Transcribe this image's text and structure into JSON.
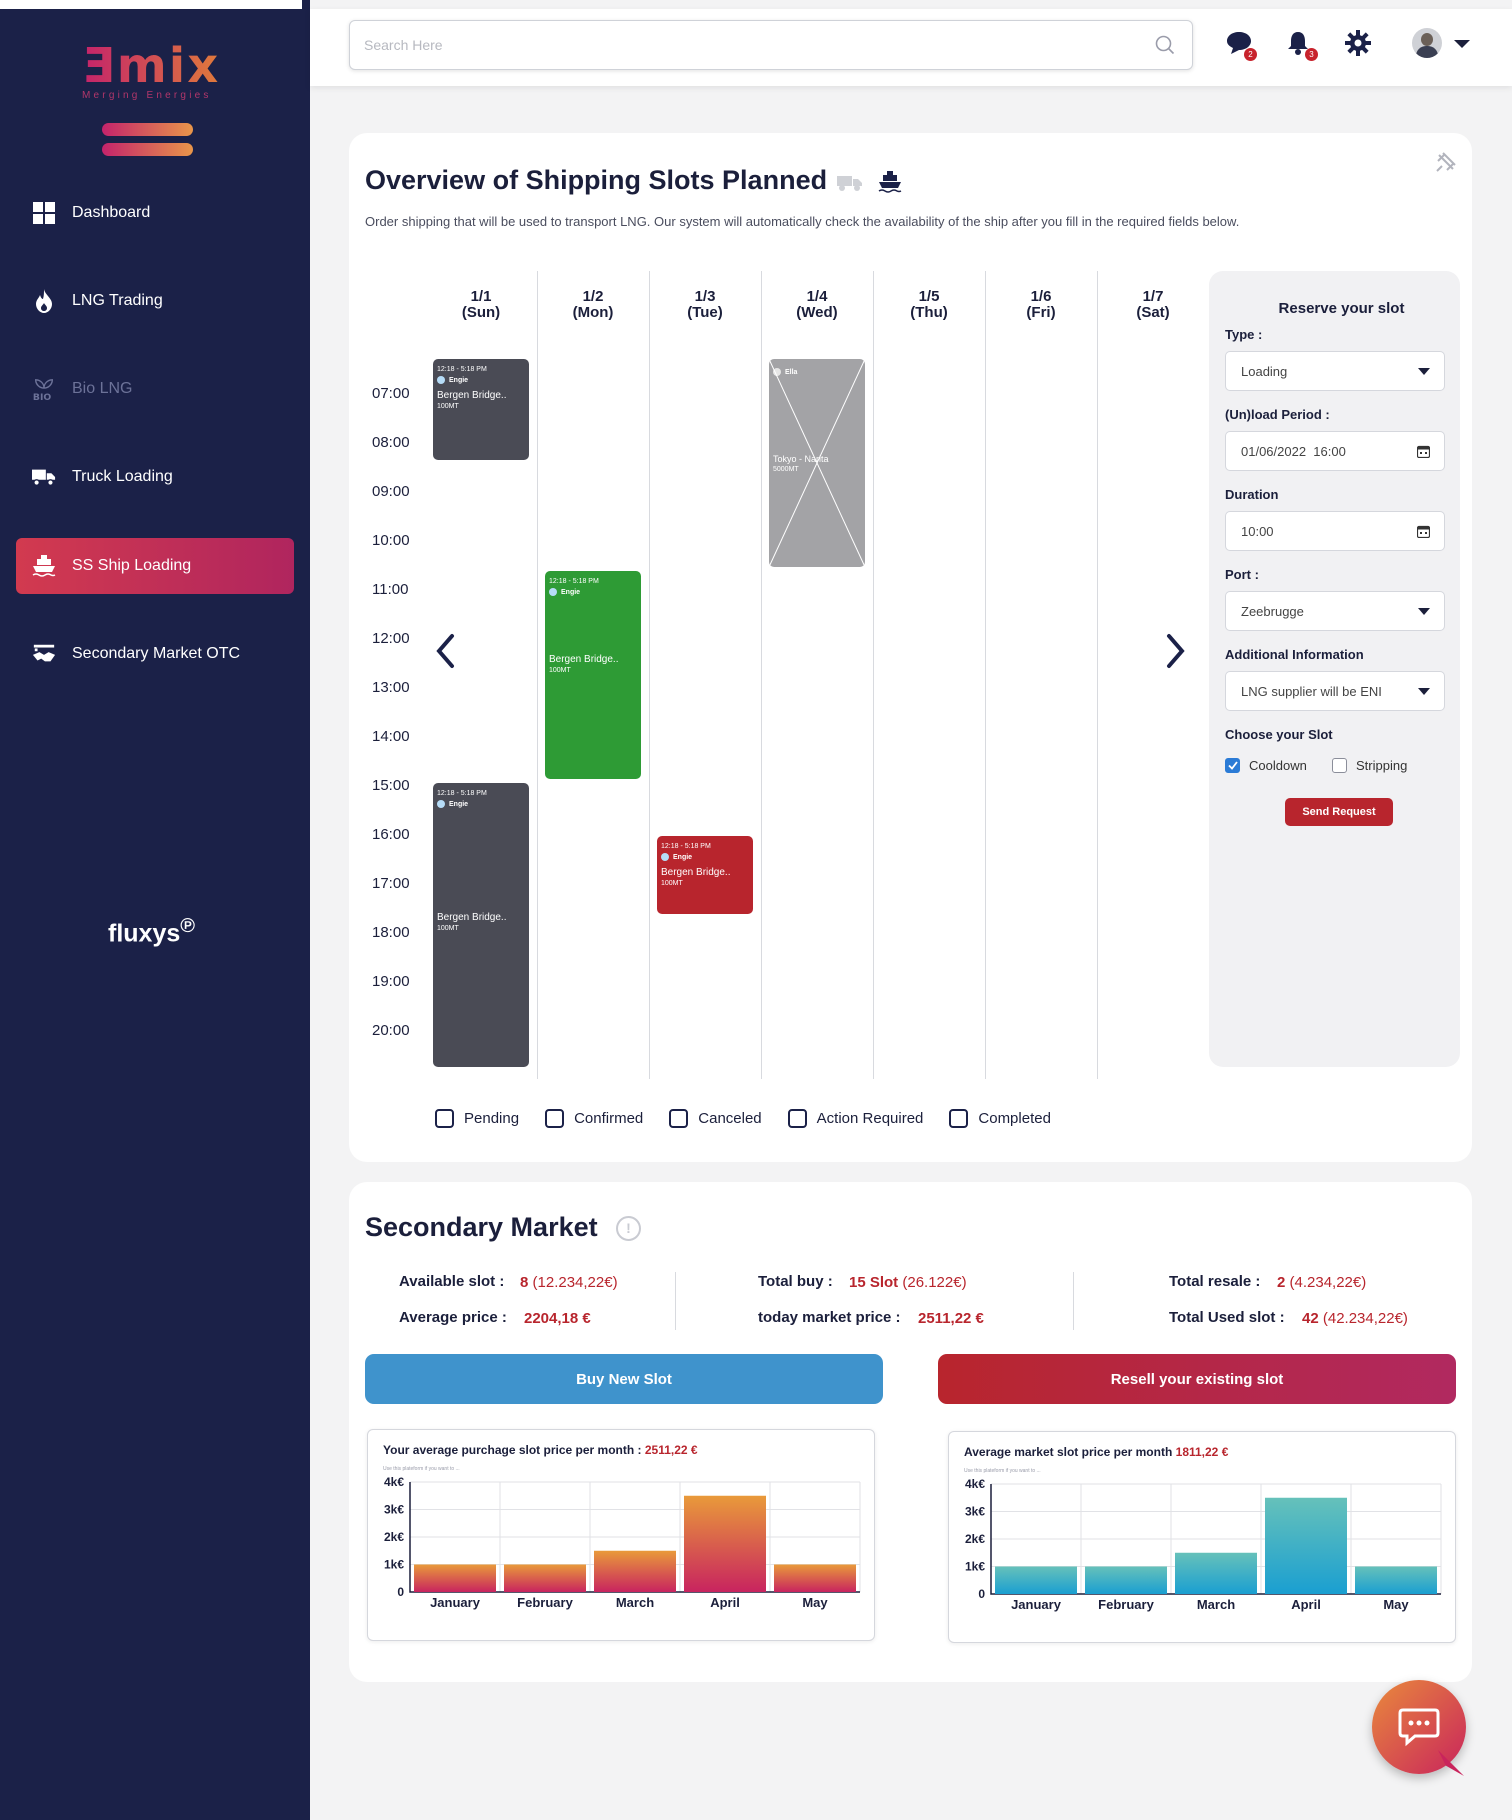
{
  "brand": {
    "logo_text": "Ǝmix",
    "tagline": "Merging Energies",
    "partner": "fluxys"
  },
  "sidebar": {
    "items": [
      {
        "label": "Dashboard",
        "icon": "grid-icon",
        "state": "normal"
      },
      {
        "label": "LNG Trading",
        "icon": "flame-icon",
        "state": "normal"
      },
      {
        "label": "Bio LNG",
        "icon": "bio-leaf-icon",
        "state": "disabled"
      },
      {
        "label": "Truck Loading",
        "icon": "truck-icon",
        "state": "normal"
      },
      {
        "label": "SS Ship Loading",
        "icon": "ship-icon",
        "state": "active"
      },
      {
        "label": "Secondary Market OTC",
        "icon": "handshake-icon",
        "state": "normal"
      }
    ]
  },
  "header": {
    "search_placeholder": "Search Here",
    "messages_badge": "2",
    "notifications_badge": "3"
  },
  "overview": {
    "title": "Overview of Shipping Slots Planned",
    "description": "Order shipping that will be used to transport LNG. Our system will automatically check the availability of the ship after you fill in the required fields below.",
    "days": [
      {
        "date": "1/1",
        "day": "(Sun)"
      },
      {
        "date": "1/2",
        "day": "(Mon)"
      },
      {
        "date": "1/3",
        "day": "(Tue)"
      },
      {
        "date": "1/4",
        "day": "(Wed)"
      },
      {
        "date": "1/5",
        "day": "(Thu)"
      },
      {
        "date": "1/6",
        "day": "(Fri)"
      },
      {
        "date": "1/7",
        "day": "(Sat)"
      }
    ],
    "times": [
      "07:00",
      "08:00",
      "09:00",
      "10:00",
      "11:00",
      "12:00",
      "13:00",
      "14:00",
      "15:00",
      "16:00",
      "17:00",
      "18:00",
      "19:00",
      "20:00"
    ],
    "events": [
      {
        "time": "12:18 - 5:18 PM",
        "company": "Engie",
        "ship": "Bergen Bridge..",
        "volume": "100MT"
      },
      {
        "time": "12:18 - 5:18 PM",
        "company": "Engie",
        "ship": "Bergen Bridge..",
        "volume": "100MT"
      },
      {
        "time": "12:18 - 5:18 PM",
        "company": "Engie",
        "ship": "Bergen Bridge..",
        "volume": "100MT"
      },
      {
        "time": "12:18 - 5:18 PM",
        "company": "Engie",
        "ship": "Bergen Bridge..",
        "volume": "100MT"
      },
      {
        "company": "Ella",
        "ship": "Tokyo - Narita",
        "volume": "5000MT"
      }
    ],
    "legend": [
      "Pending",
      "Confirmed",
      "Canceled",
      "Action Required",
      "Completed"
    ]
  },
  "reserve": {
    "title": "Reserve your slot",
    "type_label": "Type :",
    "type_value": "Loading",
    "period_label": "(Un)load Period :",
    "period_value": "01/06/2022  16:00",
    "duration_label": "Duration",
    "duration_value": "10:00",
    "port_label": "Port :",
    "port_value": "Zeebrugge",
    "info_label": "Additional Information",
    "info_value": "LNG supplier will be ENI",
    "slot_label": "Choose your Slot",
    "opt_cooldown": "Cooldown",
    "opt_stripping": "Stripping",
    "send": "Send Request"
  },
  "market": {
    "title": "Secondary Market",
    "available_label": "Available slot :",
    "available_value": "8",
    "available_sub": "(12.234,22€)",
    "avg_label": "Average price :",
    "avg_value": "2204,18 €",
    "total_buy_label": "Total buy :",
    "total_buy_value": "15 Slot",
    "total_buy_sub": "(26.122€)",
    "today_label": "today market price :",
    "today_value": "2511,22 €",
    "resale_label": "Total resale :",
    "resale_value": "2",
    "resale_sub": "(4.234,22€)",
    "used_label": "Total Used slot :",
    "used_value": "42",
    "used_sub": "(42.234,22€)",
    "buy_btn": "Buy New Slot",
    "resell_btn": "Resell your existing slot"
  },
  "chart_data": [
    {
      "type": "bar",
      "title": "Your average purchage slot price per month :",
      "title_value": "2511,22 €",
      "note": "Use this plateform if you want to ...",
      "categories": [
        "January",
        "February",
        "March",
        "April",
        "May"
      ],
      "values": [
        1000,
        1000,
        1500,
        3500,
        1000
      ],
      "yticks": [
        "0",
        "1k€",
        "2k€",
        "3k€",
        "4k€"
      ],
      "ylim": [
        0,
        4000
      ],
      "grid": true,
      "gradient": [
        "#c8245f",
        "#e99a3a"
      ]
    },
    {
      "type": "bar",
      "title": "Average market slot price per month",
      "title_value": "1811,22 €",
      "note": "Use this plateform if you want to ...",
      "categories": [
        "January",
        "February",
        "March",
        "April",
        "May"
      ],
      "values": [
        1000,
        1000,
        1500,
        3500,
        1000
      ],
      "yticks": [
        "0",
        "1k€",
        "2k€",
        "3k€",
        "4k€"
      ],
      "ylim": [
        0,
        4000
      ],
      "grid": true,
      "gradient": [
        "#1a9fd1",
        "#66c1ba"
      ]
    }
  ]
}
